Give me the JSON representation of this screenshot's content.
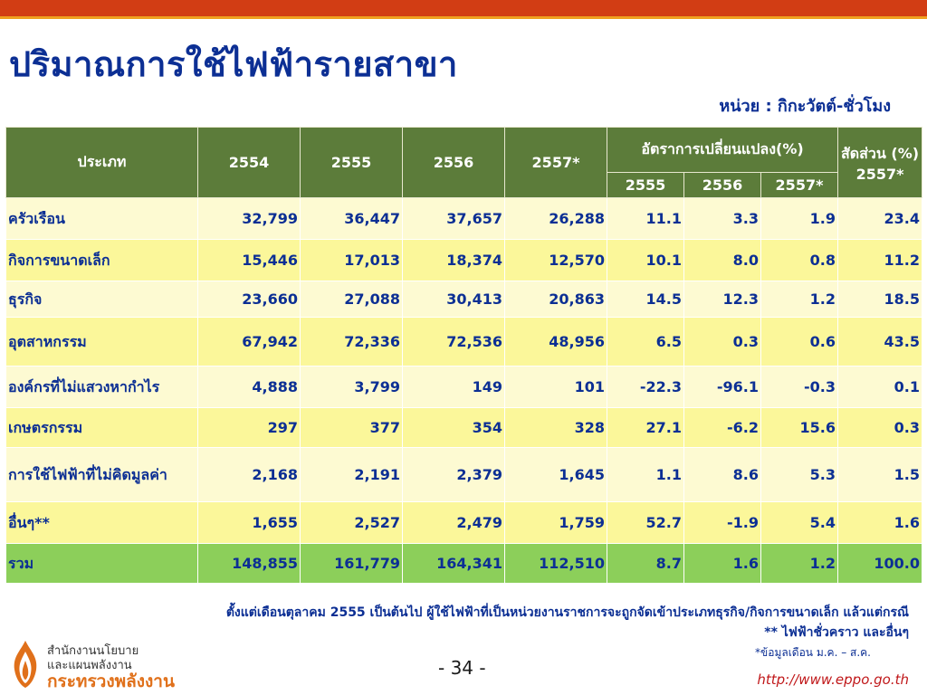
{
  "title": "ปริมาณการใช้ไฟฟ้ารายสาขา",
  "unit": "หน่วย : กิกะวัตต์-ชั่วโมง",
  "table": {
    "headers": {
      "type": "ประเภท",
      "y2554": "2554",
      "y2555": "2555",
      "y2556": "2556",
      "y2557": "2557*",
      "change_group": "อัตราการเปลี่ยนแปลง(%)",
      "ch2555": "2555",
      "ch2556": "2556",
      "ch2557": "2557*",
      "share": "สัดส่วน (%) 2557*"
    },
    "rows": [
      {
        "name": "ครัวเรือน",
        "v2554": "32,799",
        "v2555": "36,447",
        "v2556": "37,657",
        "v2557": "26,288",
        "c2555": "11.1",
        "c2556": "3.3",
        "c2557": "1.9",
        "share": "23.4"
      },
      {
        "name": "กิจการขนาดเล็ก",
        "v2554": "15,446",
        "v2555": "17,013",
        "v2556": "18,374",
        "v2557": "12,570",
        "c2555": "10.1",
        "c2556": "8.0",
        "c2557": "0.8",
        "share": "11.2"
      },
      {
        "name": "ธุรกิจ",
        "v2554": "23,660",
        "v2555": "27,088",
        "v2556": "30,413",
        "v2557": "20,863",
        "c2555": "14.5",
        "c2556": "12.3",
        "c2557": "1.2",
        "share": "18.5"
      },
      {
        "name": "อุตสาหกรรม",
        "v2554": "67,942",
        "v2555": "72,336",
        "v2556": "72,536",
        "v2557": "48,956",
        "c2555": "6.5",
        "c2556": "0.3",
        "c2557": "0.6",
        "share": "43.5"
      },
      {
        "name": "องค์กรที่ไม่แสวงหากำไร",
        "v2554": "4,888",
        "v2555": "3,799",
        "v2556": "149",
        "v2557": "101",
        "c2555": "-22.3",
        "c2556": "-96.1",
        "c2557": "-0.3",
        "share": "0.1"
      },
      {
        "name": "เกษตรกรรม",
        "v2554": "297",
        "v2555": "377",
        "v2556": "354",
        "v2557": "328",
        "c2555": "27.1",
        "c2556": "-6.2",
        "c2557": "15.6",
        "share": "0.3"
      },
      {
        "name": "การใช้ไฟฟ้าที่ไม่คิดมูลค่า",
        "v2554": "2,168",
        "v2555": "2,191",
        "v2556": "2,379",
        "v2557": "1,645",
        "c2555": "1.1",
        "c2556": "8.6",
        "c2557": "5.3",
        "share": "1.5"
      },
      {
        "name": "อื่นๆ**",
        "v2554": "1,655",
        "v2555": "2,527",
        "v2556": "2,479",
        "v2557": "1,759",
        "c2555": "52.7",
        "c2556": "-1.9",
        "c2557": "5.4",
        "share": "1.6"
      }
    ],
    "total": {
      "name": "รวม",
      "v2554": "148,855",
      "v2555": "161,779",
      "v2556": "164,341",
      "v2557": "112,510",
      "c2555": "8.7",
      "c2556": "1.6",
      "c2557": "1.2",
      "share": "100.0"
    }
  },
  "footnotes": {
    "line1": "ตั้งแต่เดือนตุลาคม 2555 เป็นต้นไป ผู้ใช้ไฟฟ้าที่เป็นหน่วยงานราชการจะถูกจัดเข้าประเภทธุรกิจ/กิจการขนาดเล็ก แล้วแต่กรณี",
    "line2": "** ไฟฟ้าชั่วคราว และอื่นๆ",
    "line3": "*ข้อมูลเดือน ม.ค. – ส.ค."
  },
  "footer": {
    "org_line1": "สำนักงานนโยบาย",
    "org_line2": "และแผนพลังงาน",
    "ministry": "กระทรวงพลังงาน",
    "page_number": "- 34 -",
    "url": "http://www.eppo.go.th"
  },
  "colors": {
    "title": "#0c2f94",
    "header_bg": "#5c7c3a",
    "row_light": "#fdfad2",
    "row_dark": "#fbf79a",
    "total_bg": "#8ccf5a",
    "top_bar": "#d23d14"
  },
  "icons": {
    "logo": "flame-logo-icon"
  }
}
